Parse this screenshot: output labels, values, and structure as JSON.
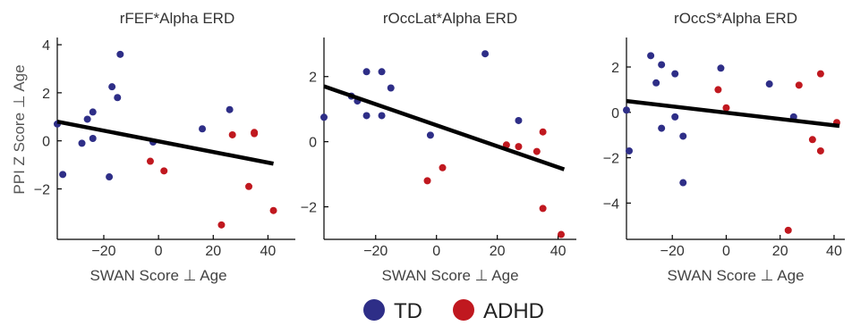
{
  "colors": {
    "TD": "#2e2e87",
    "ADHD": "#c0181f"
  },
  "legend": [
    {
      "name": "TD",
      "color": "#2e2e87"
    },
    {
      "name": "ADHD",
      "color": "#c0181f"
    }
  ],
  "chart_data": [
    {
      "type": "scatter",
      "title": "rFEF*Alpha ERD",
      "xlabel": "SWAN Score ⊥ Age",
      "ylabel": "PPI Z Score ⊥ Age",
      "xlim": [
        -37,
        50
      ],
      "ylim": [
        -4.1,
        4.3
      ],
      "xticks": [
        -20,
        0,
        20,
        40
      ],
      "yticks": [
        -2,
        0,
        2,
        4
      ],
      "regression": {
        "x": [
          -37,
          42
        ],
        "y": [
          0.8,
          -0.95
        ]
      },
      "series": [
        {
          "name": "TD",
          "points": [
            [
              -37,
              0.7
            ],
            [
              -35,
              -1.4
            ],
            [
              -28,
              -0.1
            ],
            [
              -26,
              0.9
            ],
            [
              -24,
              0.1
            ],
            [
              -24,
              1.2
            ],
            [
              -18,
              -1.5
            ],
            [
              -17,
              2.25
            ],
            [
              -15,
              1.8
            ],
            [
              -14,
              3.6
            ],
            [
              -2,
              -0.05
            ],
            [
              16,
              0.5
            ],
            [
              26,
              1.3
            ]
          ]
        },
        {
          "name": "ADHD",
          "points": [
            [
              -3,
              -0.85
            ],
            [
              2,
              -1.25
            ],
            [
              23,
              -3.5
            ],
            [
              27,
              0.25
            ],
            [
              33,
              -1.9
            ],
            [
              35,
              0.35
            ],
            [
              35,
              0.3
            ],
            [
              42,
              -2.9
            ]
          ]
        }
      ]
    },
    {
      "type": "scatter",
      "title": "rOccLat*Alpha ERD",
      "xlabel": "SWAN Score ⊥ Age",
      "ylabel": "",
      "xlim": [
        -37,
        46
      ],
      "ylim": [
        -3.0,
        3.2
      ],
      "xticks": [
        -20,
        0,
        20,
        40
      ],
      "yticks": [
        -2,
        0,
        2
      ],
      "regression": {
        "x": [
          -37,
          42
        ],
        "y": [
          1.7,
          -0.85
        ]
      },
      "series": [
        {
          "name": "TD",
          "points": [
            [
              -37,
              0.75
            ],
            [
              -28,
              1.4
            ],
            [
              -26,
              1.25
            ],
            [
              -23,
              2.15
            ],
            [
              -23,
              0.8
            ],
            [
              -18,
              2.15
            ],
            [
              -18,
              0.8
            ],
            [
              -15,
              1.65
            ],
            [
              -2,
              0.2
            ],
            [
              16,
              2.7
            ],
            [
              27,
              0.65
            ]
          ]
        },
        {
          "name": "ADHD",
          "points": [
            [
              -3,
              -1.2
            ],
            [
              2,
              -0.8
            ],
            [
              23,
              -0.1
            ],
            [
              27,
              -0.15
            ],
            [
              33,
              -0.3
            ],
            [
              35,
              0.3
            ],
            [
              35,
              -2.05
            ],
            [
              41,
              -2.85
            ]
          ]
        }
      ]
    },
    {
      "type": "scatter",
      "title": "rOccS*Alpha ERD",
      "xlabel": "SWAN Score ⊥ Age",
      "ylabel": "",
      "xlim": [
        -37,
        44
      ],
      "ylim": [
        -5.6,
        3.3
      ],
      "xticks": [
        -20,
        0,
        20,
        40
      ],
      "yticks": [
        -4,
        -2,
        0,
        2
      ],
      "regression": {
        "x": [
          -37,
          42
        ],
        "y": [
          0.5,
          -0.6
        ]
      },
      "series": [
        {
          "name": "TD",
          "points": [
            [
              -37,
              0.1
            ],
            [
              -36,
              -1.7
            ],
            [
              -28,
              2.5
            ],
            [
              -26,
              1.3
            ],
            [
              -24,
              -0.7
            ],
            [
              -24,
              2.1
            ],
            [
              -19,
              1.7
            ],
            [
              -19,
              -0.2
            ],
            [
              -16,
              -1.05
            ],
            [
              -16,
              -3.1
            ],
            [
              -2,
              1.95
            ],
            [
              16,
              1.25
            ],
            [
              25,
              -0.2
            ]
          ]
        },
        {
          "name": "ADHD",
          "points": [
            [
              -3,
              1.0
            ],
            [
              0,
              0.2
            ],
            [
              23,
              -5.2
            ],
            [
              27,
              1.2
            ],
            [
              32,
              -1.2
            ],
            [
              35,
              1.7
            ],
            [
              35,
              -1.7
            ],
            [
              41,
              -0.45
            ]
          ]
        }
      ]
    }
  ]
}
